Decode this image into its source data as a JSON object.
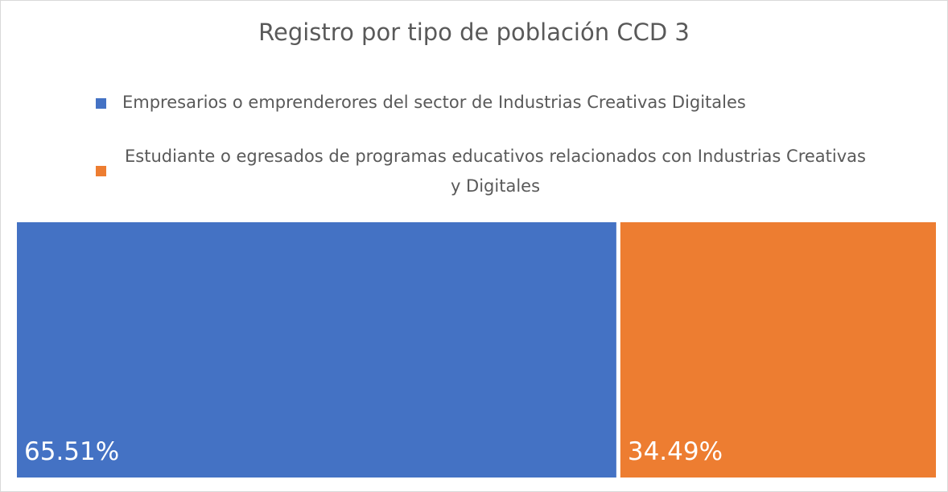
{
  "chart_data": {
    "type": "treemap",
    "title": "Registro por tipo de población CCD 3",
    "series": [
      {
        "name": "Empresarios o emprenderores del sector de Industrias Creativas Digitales",
        "color": "#4472c4",
        "values": [
          65.51
        ],
        "value_labels": [
          "65.51%"
        ]
      },
      {
        "name": "Estudiante o egresados de programas educativos relacionados con Industrias Creativas y Digitales",
        "color": "#ed7d31",
        "values": [
          34.49
        ],
        "value_labels": [
          "34.49%"
        ]
      }
    ]
  }
}
